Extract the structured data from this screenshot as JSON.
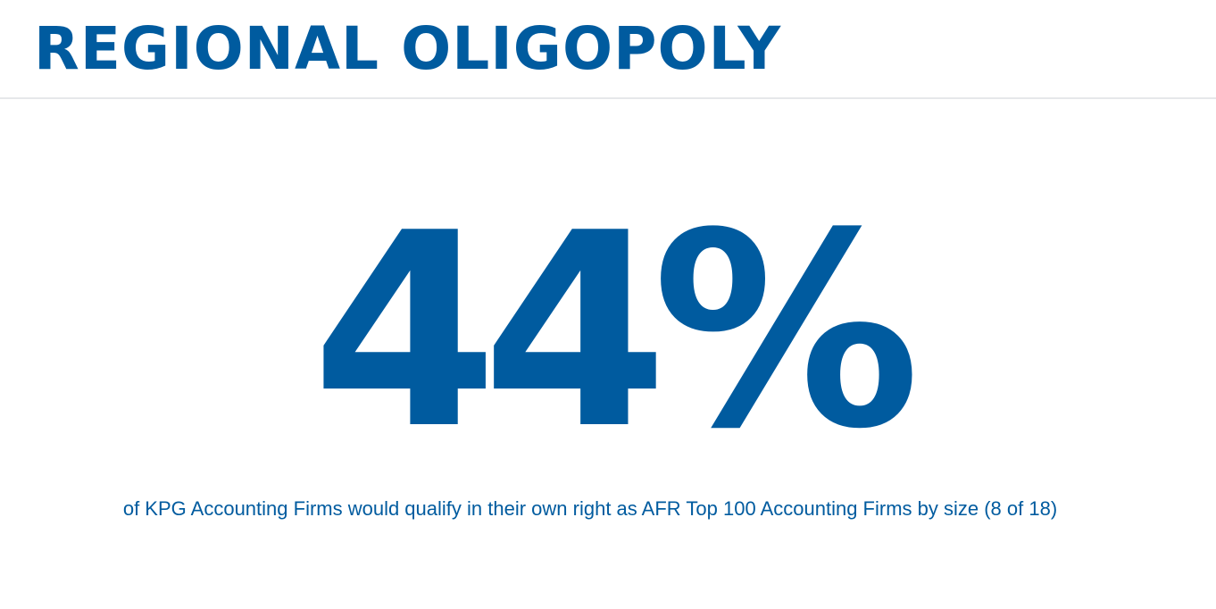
{
  "slide": {
    "title": "REGIONAL OLIGOPOLY",
    "stat_value": "44%",
    "stat_caption": "of KPG Accounting Firms would qualify in their own right as AFR Top 100 Accounting Firms by size (8 of 18)"
  },
  "colors": {
    "brand_blue": "#005b9f",
    "divider_gray": "#e6e8ea",
    "background": "#ffffff"
  }
}
